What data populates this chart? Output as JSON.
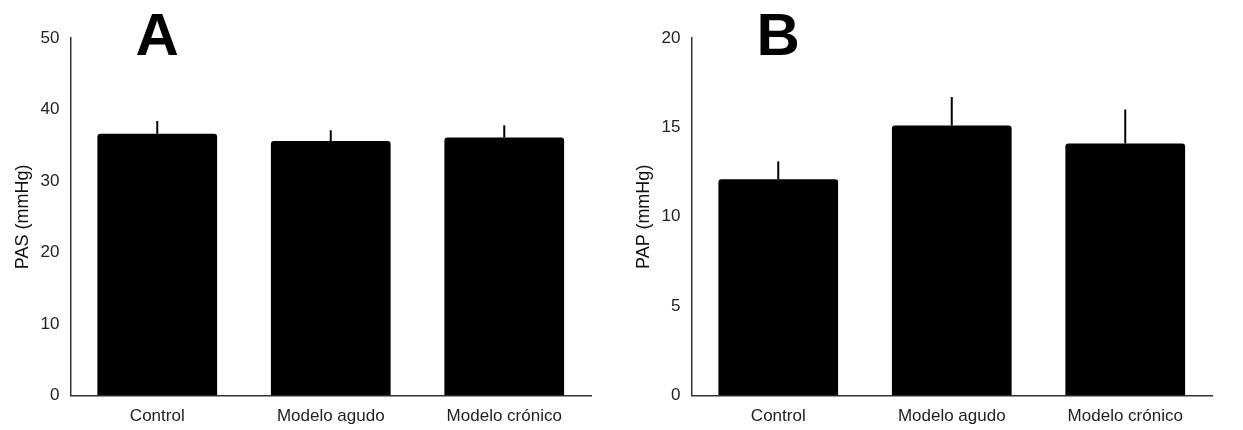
{
  "chart_data": [
    {
      "type": "bar",
      "title": "A",
      "ylabel": "PAS (mmHg)",
      "categories": [
        "Control",
        "Modelo agudo",
        "Modelo crónico"
      ],
      "values": [
        36.6,
        35.6,
        36.1
      ],
      "color": "#000000",
      "errors": [
        [
          36.6,
          38.4
        ],
        [
          35.6,
          37.1
        ],
        [
          36.1,
          37.8
        ]
      ],
      "ylim": [
        0,
        50
      ],
      "yticks": [
        0,
        10,
        20,
        30,
        40,
        50
      ],
      "grid": false
    },
    {
      "type": "bar",
      "title": "B",
      "ylabel": "PAP (mmHg)",
      "categories": [
        "Control",
        "Modelo agudo",
        "Modelo crónico"
      ],
      "values": [
        12.1,
        15.1,
        14.1
      ],
      "color": "#000000",
      "errors": [
        [
          12.1,
          13.1
        ],
        [
          15.1,
          16.7
        ],
        [
          14.1,
          16.0
        ]
      ],
      "ylim": [
        0,
        20
      ],
      "yticks": [
        0,
        5,
        10,
        15,
        20
      ],
      "grid": false
    }
  ]
}
